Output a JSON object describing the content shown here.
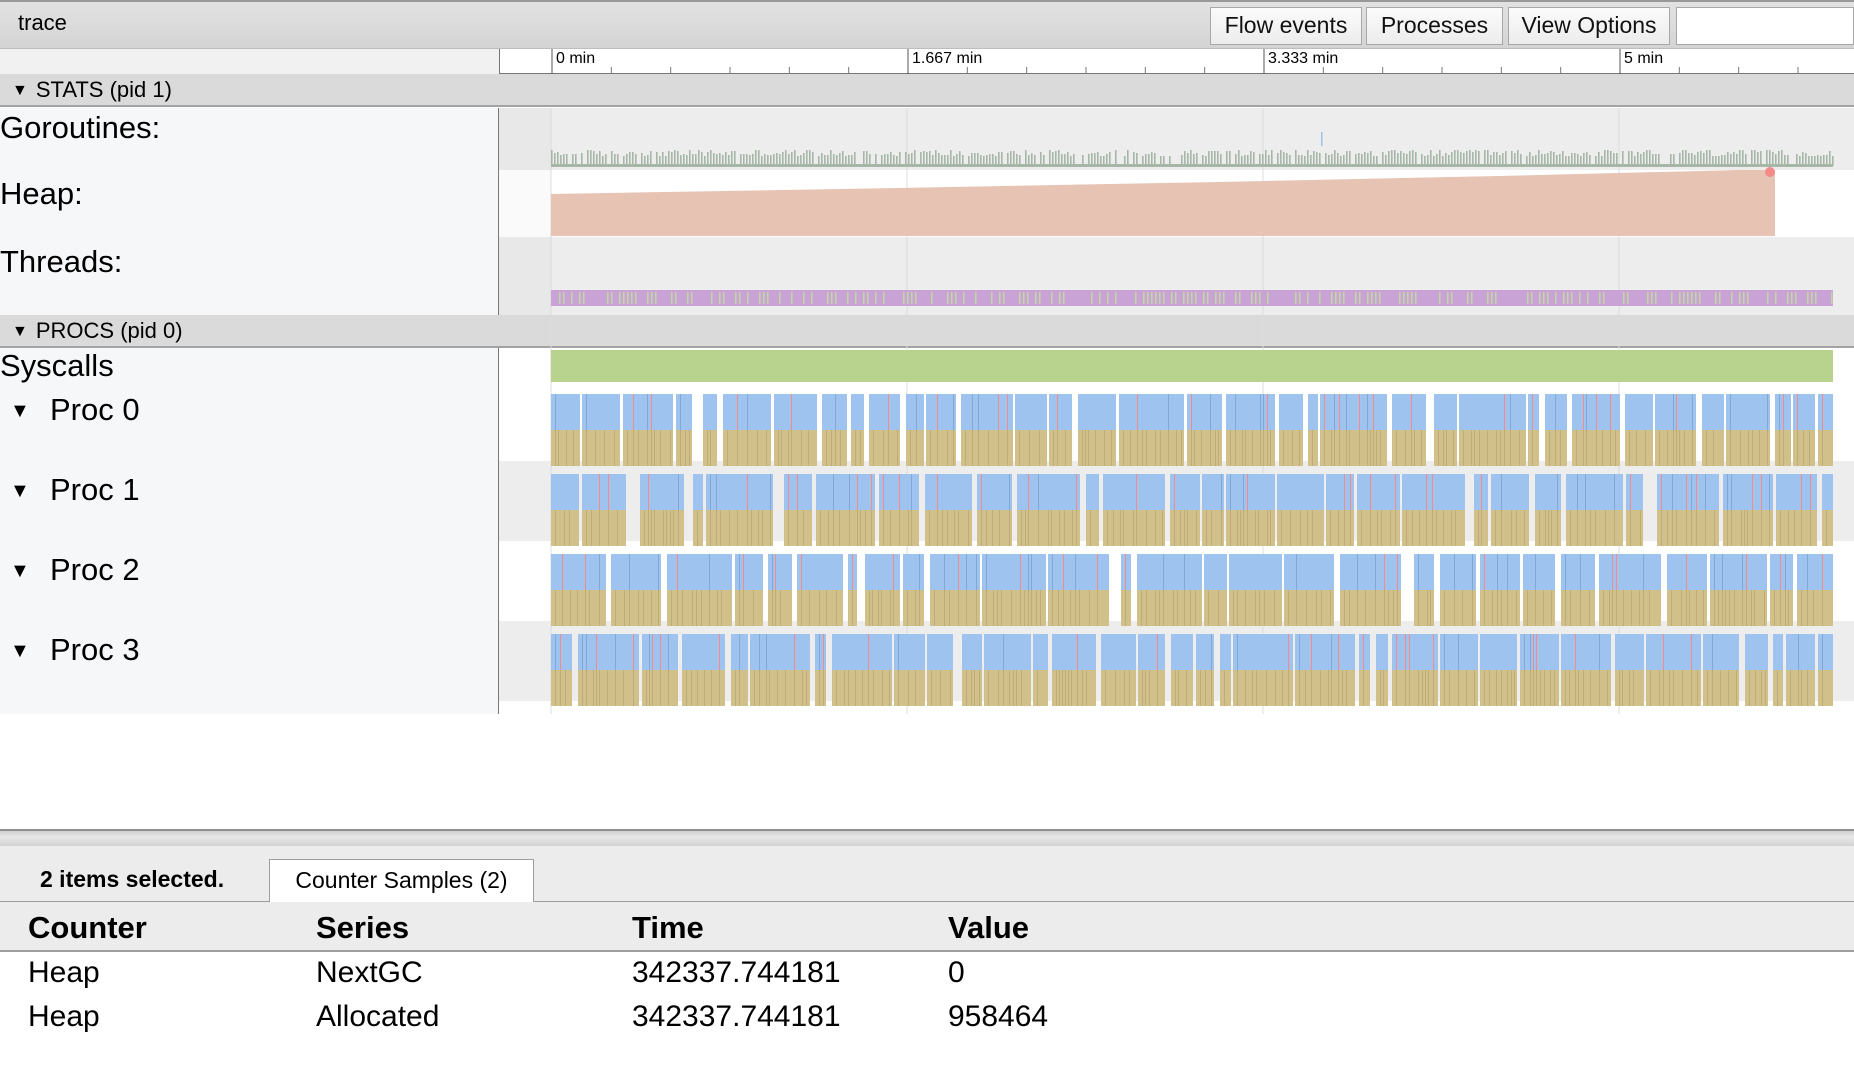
{
  "header": {
    "title": "trace",
    "buttons": {
      "flow_events": "Flow events",
      "processes": "Processes",
      "view_options": "View Options"
    },
    "search_value": ""
  },
  "ruler": {
    "ticks": [
      "0 min",
      "1.667 min",
      "3.333 min",
      "5 min"
    ]
  },
  "groups": {
    "stats": {
      "label": "STATS (pid 1)",
      "tracks": {
        "goroutines": "Goroutines:",
        "heap": "Heap:",
        "threads": "Threads:"
      }
    },
    "procs": {
      "label": "PROCS (pid 0)",
      "tracks": {
        "syscalls": "Syscalls",
        "proc0": "Proc 0",
        "proc1": "Proc 1",
        "proc2": "Proc 2",
        "proc3": "Proc 3"
      }
    }
  },
  "colors": {
    "goroutines": "#a7b7a7",
    "heap": "#e6c3b2",
    "threads": "#c9a3d6",
    "syscalls": "#b8d38e",
    "running": "#9ec3ef",
    "gc": "#d2c08b",
    "marker": "#f58a8a"
  },
  "selection": {
    "summary": "2 items selected.",
    "tab": "Counter Samples (2)",
    "columns": [
      "Counter",
      "Series",
      "Time",
      "Value"
    ],
    "rows": [
      {
        "counter": "Heap",
        "series": "NextGC",
        "time": "342337.744181",
        "value": "0"
      },
      {
        "counter": "Heap",
        "series": "Allocated",
        "time": "342337.744181",
        "value": "958464"
      }
    ]
  }
}
